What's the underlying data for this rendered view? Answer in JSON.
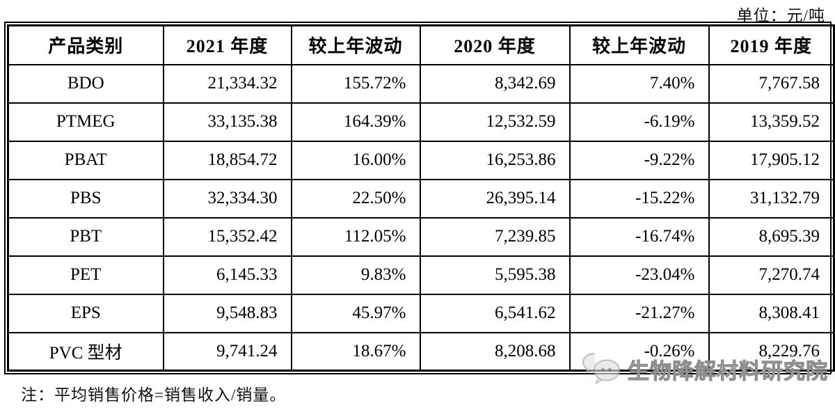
{
  "unit_label": "单位：元/吨",
  "note": "注：平均销售价格=销售收入/销量。",
  "watermark": {
    "icon": "wechat-logo",
    "text": "生物降解材料研究院"
  },
  "table": {
    "headers": [
      "产品类别",
      "2021 年度",
      "较上年波动",
      "2020 年度",
      "较上年波动",
      "2019 年度"
    ],
    "rows": [
      [
        "BDO",
        "21,334.32",
        "155.72%",
        "8,342.69",
        "7.40%",
        "7,767.58"
      ],
      [
        "PTMEG",
        "33,135.38",
        "164.39%",
        "12,532.59",
        "-6.19%",
        "13,359.52"
      ],
      [
        "PBAT",
        "18,854.72",
        "16.00%",
        "16,253.86",
        "-9.22%",
        "17,905.12"
      ],
      [
        "PBS",
        "32,334.30",
        "22.50%",
        "26,395.14",
        "-15.22%",
        "31,132.79"
      ],
      [
        "PBT",
        "15,352.42",
        "112.05%",
        "7,239.85",
        "-16.74%",
        "8,695.39"
      ],
      [
        "PET",
        "6,145.33",
        "9.83%",
        "5,595.38",
        "-23.04%",
        "7,270.74"
      ],
      [
        "EPS",
        "9,548.83",
        "45.97%",
        "6,541.62",
        "-21.27%",
        "8,308.41"
      ],
      [
        "PVC 型材",
        "9,741.24",
        "18.67%",
        "8,208.68",
        "-0.26%",
        "8,229.76"
      ]
    ]
  }
}
